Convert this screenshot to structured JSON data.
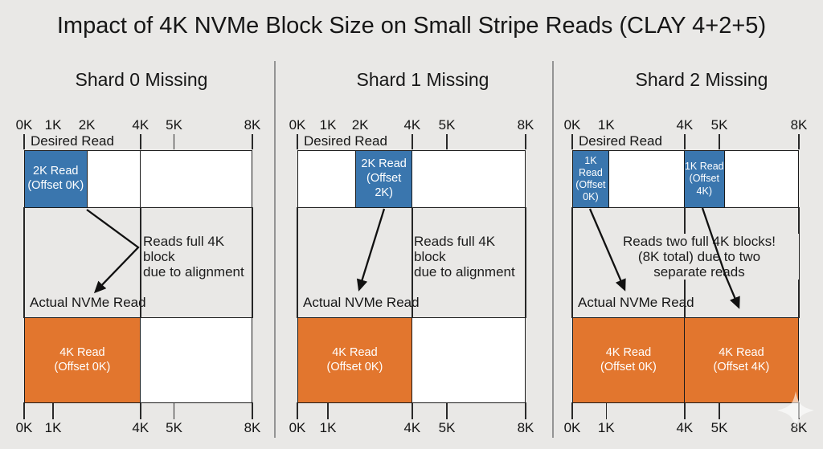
{
  "title": "Impact of 4K NVMe Block Size on Small Stripe Reads (CLAY 4+2+5)",
  "colors": {
    "background": "#E9E8E6",
    "blue": "#3A76AE",
    "orange": "#E2762E",
    "white": "#FFFFFF",
    "border": "#1B1B1B",
    "divider": "#949494"
  },
  "panels": [
    {
      "header": "Shard 0 Missing",
      "desired_label": "Desired Read",
      "actual_label": "Actual NVMe Read",
      "ticks": [
        {
          "label": "0K",
          "pos": 0,
          "top": true,
          "top_mark": true,
          "bottom": true
        },
        {
          "label": "1K",
          "pos": 12.7,
          "top": true,
          "top_mark": false,
          "bottom": true
        },
        {
          "label": "2K",
          "pos": 27.5,
          "top": true,
          "top_mark": false,
          "bottom": false
        },
        {
          "label": "4K",
          "pos": 51,
          "top": true,
          "top_mark": true,
          "bottom": true
        },
        {
          "label": "5K",
          "pos": 65.7,
          "top": true,
          "top_mark": true,
          "bottom": true
        },
        {
          "label": "8K",
          "pos": 100,
          "top": true,
          "top_mark": true,
          "bottom": true
        }
      ],
      "desired_segments": [
        {
          "fill": "blue",
          "from": 0,
          "to": 27.5,
          "lines": [
            "2K Read",
            "(Offset 0K)"
          ]
        },
        {
          "fill": "white",
          "from": 27.5,
          "to": 51,
          "lines": []
        },
        {
          "fill": "white",
          "from": 51,
          "to": 100,
          "lines": []
        }
      ],
      "actual_segments": [
        {
          "fill": "orange",
          "from": 0,
          "to": 51,
          "lines": [
            "4K Read",
            "(Offset 0K)"
          ]
        },
        {
          "fill": "white",
          "from": 51,
          "to": 100,
          "lines": []
        }
      ],
      "gap_lines": [
        0,
        51,
        100
      ],
      "annotation": {
        "lines": [
          "Reads full 4K block",
          "due to alignment"
        ],
        "align": "left"
      }
    },
    {
      "header": "Shard 1 Missing",
      "desired_label": "Desired Read",
      "actual_label": "Actual NVMe Read",
      "ticks": [
        {
          "label": "0K",
          "pos": 0,
          "top": true,
          "top_mark": true,
          "bottom": true
        },
        {
          "label": "1K",
          "pos": 13.4,
          "top": true,
          "top_mark": false,
          "bottom": true
        },
        {
          "label": "2K",
          "pos": 27.5,
          "top": true,
          "top_mark": false,
          "bottom": false
        },
        {
          "label": "4K",
          "pos": 50.3,
          "top": true,
          "top_mark": true,
          "bottom": true
        },
        {
          "label": "5K",
          "pos": 65.5,
          "top": true,
          "top_mark": true,
          "bottom": true
        },
        {
          "label": "8K",
          "pos": 100,
          "top": true,
          "top_mark": true,
          "bottom": true
        }
      ],
      "desired_segments": [
        {
          "fill": "white",
          "from": 0,
          "to": 25.7,
          "lines": []
        },
        {
          "fill": "blue",
          "from": 25.7,
          "to": 50.3,
          "lines": [
            "2K Read",
            "(Offset 2K)"
          ]
        },
        {
          "fill": "white",
          "from": 50.3,
          "to": 100,
          "lines": []
        }
      ],
      "actual_segments": [
        {
          "fill": "orange",
          "from": 0,
          "to": 50.3,
          "lines": [
            "4K Read",
            "(Offset 0K)"
          ]
        },
        {
          "fill": "white",
          "from": 50.3,
          "to": 100,
          "lines": []
        }
      ],
      "gap_lines": [
        0,
        50.3,
        100
      ],
      "annotation": {
        "lines": [
          "Reads full 4K block",
          "due to alignment"
        ],
        "align": "left"
      }
    },
    {
      "header": "Shard 2 Missing",
      "desired_label": "Desired Read",
      "actual_label": "Actual NVMe Read",
      "ticks": [
        {
          "label": "0K",
          "pos": 0,
          "top": true,
          "top_mark": true,
          "bottom": true
        },
        {
          "label": "1K",
          "pos": 15,
          "top": true,
          "top_mark": false,
          "bottom": true
        },
        {
          "label": "4K",
          "pos": 49.6,
          "top": true,
          "top_mark": true,
          "bottom": true
        },
        {
          "label": "5K",
          "pos": 64.9,
          "top": true,
          "top_mark": true,
          "bottom": true
        },
        {
          "label": "8K",
          "pos": 100,
          "top": true,
          "top_mark": true,
          "bottom": true
        }
      ],
      "desired_segments": [
        {
          "fill": "blue",
          "from": 0,
          "to": 16,
          "lines": [
            "1K Read",
            "(Offset",
            "0K)"
          ]
        },
        {
          "fill": "white",
          "from": 16,
          "to": 49.6,
          "lines": []
        },
        {
          "fill": "blue",
          "from": 49.6,
          "to": 67.4,
          "lines": [
            "1K Read",
            "(Offset",
            "4K)"
          ]
        },
        {
          "fill": "white",
          "from": 67.4,
          "to": 100,
          "lines": []
        }
      ],
      "actual_segments": [
        {
          "fill": "orange",
          "from": 0,
          "to": 49.6,
          "lines": [
            "4K Read",
            "(Offset 0K)"
          ]
        },
        {
          "fill": "orange",
          "from": 49.6,
          "to": 100,
          "lines": [
            "4K Read",
            "(Offset 4K)"
          ]
        }
      ],
      "gap_lines": [
        0,
        49.6,
        100
      ],
      "annotation": {
        "lines": [
          "Reads two full 4K blocks!",
          "(8K total) due to two",
          "separate reads"
        ],
        "align": "center"
      }
    }
  ]
}
